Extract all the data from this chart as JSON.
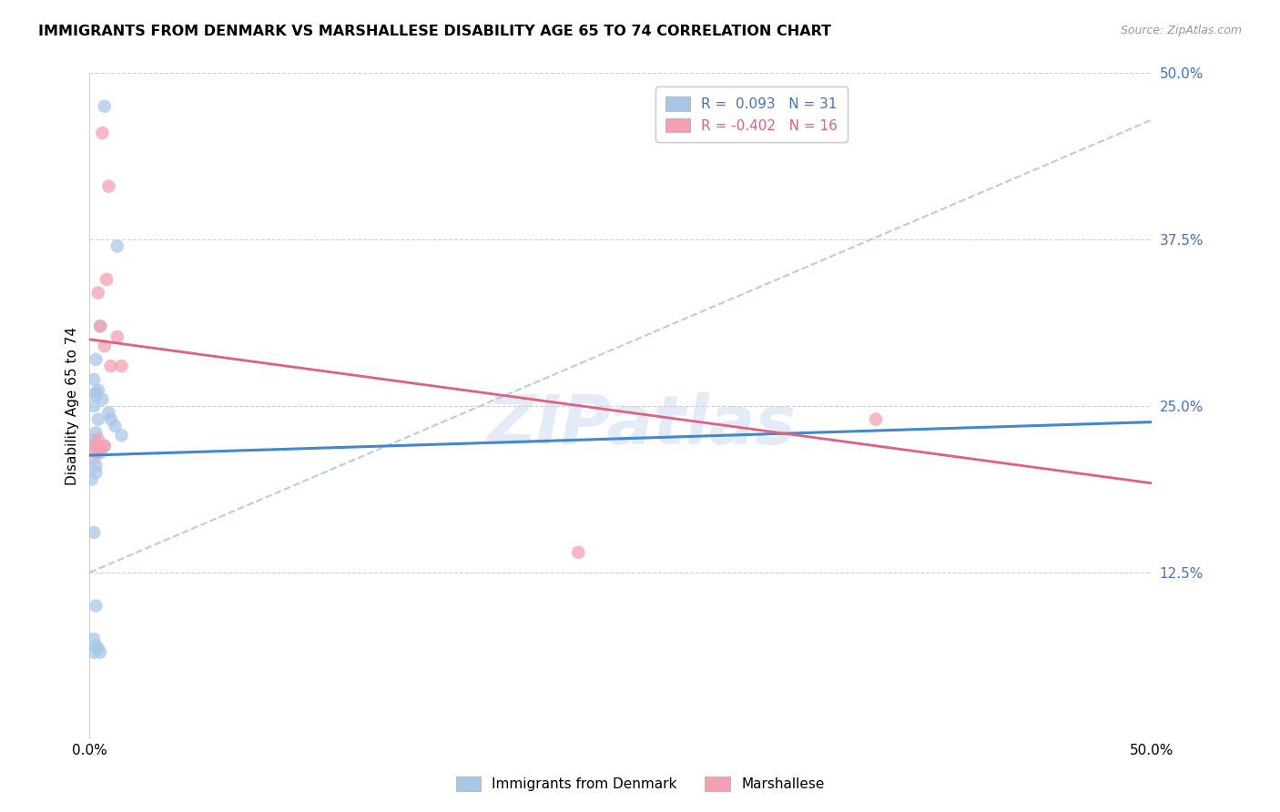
{
  "title": "IMMIGRANTS FROM DENMARK VS MARSHALLESE DISABILITY AGE 65 TO 74 CORRELATION CHART",
  "source": "Source: ZipAtlas.com",
  "ylabel": "Disability Age 65 to 74",
  "xlim": [
    0.0,
    0.5
  ],
  "ylim": [
    0.0,
    0.5
  ],
  "yticks": [
    0.0,
    0.125,
    0.25,
    0.375,
    0.5
  ],
  "ytick_labels": [
    "",
    "12.5%",
    "25.0%",
    "37.5%",
    "50.0%"
  ],
  "xticks": [
    0.0,
    0.1,
    0.2,
    0.3,
    0.4,
    0.5
  ],
  "xtick_labels": [
    "0.0%",
    "",
    "",
    "",
    "",
    "50.0%"
  ],
  "legend_blue_label": "R =  0.093   N = 31",
  "legend_pink_label": "R = -0.402   N = 16",
  "legend_bottom_blue": "Immigrants from Denmark",
  "legend_bottom_pink": "Marshallese",
  "blue_color": "#a8c8e8",
  "pink_color": "#f4a0b0",
  "blue_line_color": "#4488cc",
  "pink_line_color": "#e06080",
  "dashed_line_color": "#b8cce4",
  "watermark": "ZIPatlas",
  "blue_scatter_x": [
    0.007,
    0.013,
    0.005,
    0.003,
    0.002,
    0.004,
    0.003,
    0.003,
    0.006,
    0.002,
    0.01,
    0.012,
    0.015,
    0.009,
    0.002,
    0.003,
    0.001,
    0.005,
    0.002,
    0.003,
    0.003,
    0.001,
    0.004,
    0.007,
    0.002,
    0.003,
    0.002,
    0.003,
    0.004,
    0.005,
    0.002
  ],
  "blue_scatter_y": [
    0.475,
    0.37,
    0.31,
    0.285,
    0.27,
    0.262,
    0.26,
    0.258,
    0.255,
    0.25,
    0.24,
    0.235,
    0.228,
    0.245,
    0.225,
    0.23,
    0.22,
    0.215,
    0.21,
    0.205,
    0.2,
    0.195,
    0.24,
    0.22,
    0.155,
    0.1,
    0.075,
    0.07,
    0.068,
    0.065,
    0.065
  ],
  "pink_scatter_x": [
    0.006,
    0.009,
    0.008,
    0.004,
    0.005,
    0.007,
    0.013,
    0.01,
    0.004,
    0.005,
    0.003,
    0.015,
    0.007,
    0.003,
    0.37,
    0.23
  ],
  "pink_scatter_y": [
    0.455,
    0.415,
    0.345,
    0.335,
    0.31,
    0.295,
    0.302,
    0.28,
    0.225,
    0.218,
    0.22,
    0.28,
    0.22,
    0.215,
    0.24,
    0.14
  ],
  "blue_line_x": [
    0.0,
    0.5
  ],
  "blue_line_y": [
    0.213,
    0.238
  ],
  "pink_line_x": [
    0.0,
    0.5
  ],
  "pink_line_y": [
    0.3,
    0.192
  ],
  "dashed_line_x": [
    0.0,
    0.5
  ],
  "dashed_line_y": [
    0.125,
    0.465
  ]
}
